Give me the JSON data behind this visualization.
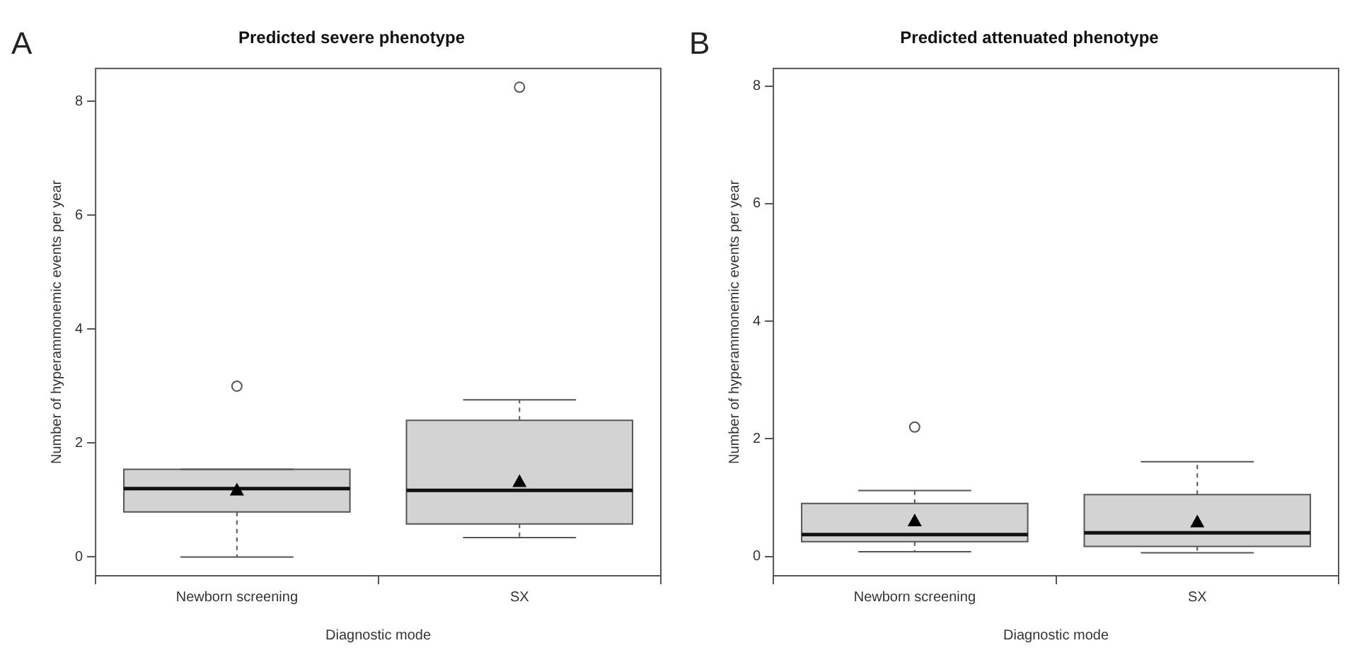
{
  "chart_data": [
    {
      "type": "box",
      "title": "Predicted severe phenotype",
      "xlabel": "Diagnostic mode",
      "ylabel": "Number of hyperammonemic events per year",
      "annotations": [
        "A"
      ],
      "categories": [
        "Newborn screening",
        "SX"
      ],
      "color": "#d3d3d3",
      "ylim": [
        -0.33,
        8.58
      ],
      "yticks": [
        0,
        2,
        4,
        6,
        8
      ],
      "grid": false,
      "legend": false,
      "boxes": [
        {
          "low": 0,
          "q1": 0.79,
          "median": 1.2,
          "q3": 1.54,
          "high": 1.54,
          "mean": 1.18,
          "outliers": [
            3.0
          ]
        },
        {
          "low": 0.34,
          "q1": 0.58,
          "median": 1.17,
          "q3": 2.4,
          "high": 2.76,
          "mean": 1.33,
          "outliers": [
            8.25
          ]
        }
      ]
    },
    {
      "type": "box",
      "title": "Predicted attenuated phenotype",
      "xlabel": "Diagnostic mode",
      "ylabel": "Number of hyperammonemic events per year",
      "annotations": [
        "B"
      ],
      "categories": [
        "Newborn screening",
        "SX"
      ],
      "color": "#d3d3d3",
      "ylim": [
        -0.33,
        8.3
      ],
      "yticks": [
        0,
        2,
        4,
        6,
        8
      ],
      "grid": false,
      "legend": false,
      "boxes": [
        {
          "low": 0.08,
          "q1": 0.25,
          "median": 0.37,
          "q3": 0.9,
          "high": 1.12,
          "mean": 0.61,
          "outliers": [
            2.2
          ]
        },
        {
          "low": 0.06,
          "q1": 0.17,
          "median": 0.4,
          "q3": 1.05,
          "high": 1.61,
          "mean": 0.59
        }
      ]
    }
  ]
}
